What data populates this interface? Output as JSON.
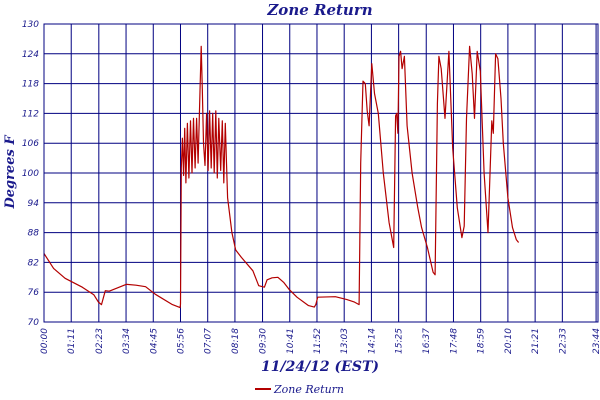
{
  "chart_data": {
    "type": "line",
    "title": "Zone Return",
    "xlabel": "11/24/12 (EST)",
    "ylabel": "Degrees F",
    "ylim": [
      70,
      130
    ],
    "yticks": [
      70,
      76,
      82,
      88,
      94,
      100,
      106,
      112,
      118,
      124,
      130
    ],
    "xlim": [
      0,
      1445
    ],
    "xticks": [
      {
        "m": 0,
        "label": "00:00"
      },
      {
        "m": 71,
        "label": "01:11"
      },
      {
        "m": 143,
        "label": "02:23"
      },
      {
        "m": 214,
        "label": "03:34"
      },
      {
        "m": 285,
        "label": "04:45"
      },
      {
        "m": 356,
        "label": "05:56"
      },
      {
        "m": 427,
        "label": "07:07"
      },
      {
        "m": 498,
        "label": "08:18"
      },
      {
        "m": 570,
        "label": "09:30"
      },
      {
        "m": 641,
        "label": "10:41"
      },
      {
        "m": 712,
        "label": "11:52"
      },
      {
        "m": 783,
        "label": "13:03"
      },
      {
        "m": 854,
        "label": "14:14"
      },
      {
        "m": 925,
        "label": "15:25"
      },
      {
        "m": 997,
        "label": "16:37"
      },
      {
        "m": 1068,
        "label": "17:48"
      },
      {
        "m": 1139,
        "label": "18:59"
      },
      {
        "m": 1210,
        "label": "20:10"
      },
      {
        "m": 1281,
        "label": "21:21"
      },
      {
        "m": 1352,
        "label": "22:33"
      },
      {
        "m": 1440,
        "label": "23:44"
      }
    ],
    "grid": true,
    "legend_position": "bottom-center",
    "series": [
      {
        "name": "Zone Return",
        "color": "#b30000",
        "points": [
          [
            0,
            83.8
          ],
          [
            25,
            80.8
          ],
          [
            55,
            78.8
          ],
          [
            100,
            77
          ],
          [
            130,
            75.5
          ],
          [
            142,
            74
          ],
          [
            150,
            73.5
          ],
          [
            160,
            76.3
          ],
          [
            170,
            76.2
          ],
          [
            215,
            77.6
          ],
          [
            240,
            77.4
          ],
          [
            265,
            77.1
          ],
          [
            290,
            75.6
          ],
          [
            335,
            73.5
          ],
          [
            355,
            72.9
          ],
          [
            356,
            73.6
          ],
          [
            358,
            101
          ],
          [
            361,
            107
          ],
          [
            364,
            99.5
          ],
          [
            367,
            109
          ],
          [
            370,
            98
          ],
          [
            374,
            110
          ],
          [
            378,
            99
          ],
          [
            382,
            110.5
          ],
          [
            386,
            100
          ],
          [
            390,
            111
          ],
          [
            394,
            101
          ],
          [
            398,
            111
          ],
          [
            402,
            102
          ],
          [
            407,
            116.5
          ],
          [
            410,
            125.5
          ],
          [
            413,
            117
          ],
          [
            416,
            106
          ],
          [
            420,
            101.5
          ],
          [
            424,
            112
          ],
          [
            428,
            100.5
          ],
          [
            432,
            112.5
          ],
          [
            436,
            101
          ],
          [
            440,
            112
          ],
          [
            444,
            100
          ],
          [
            448,
            112.5
          ],
          [
            452,
            99
          ],
          [
            456,
            111
          ],
          [
            461,
            100.5
          ],
          [
            465,
            110.5
          ],
          [
            469,
            98
          ],
          [
            473,
            110
          ],
          [
            476,
            102
          ],
          [
            479,
            95
          ],
          [
            490,
            88
          ],
          [
            500,
            84.5
          ],
          [
            515,
            83
          ],
          [
            545,
            80.3
          ],
          [
            560,
            77.3
          ],
          [
            575,
            77
          ],
          [
            582,
            78.5
          ],
          [
            595,
            78.9
          ],
          [
            610,
            79
          ],
          [
            625,
            78
          ],
          [
            640,
            76.5
          ],
          [
            660,
            75
          ],
          [
            690,
            73.3
          ],
          [
            705,
            73
          ],
          [
            709,
            73.5
          ],
          [
            714,
            75
          ],
          [
            760,
            75.1
          ],
          [
            790,
            74.5
          ],
          [
            810,
            74
          ],
          [
            822,
            73.5
          ],
          [
            826,
            102
          ],
          [
            832,
            118.5
          ],
          [
            838,
            118
          ],
          [
            843,
            112.5
          ],
          [
            848,
            109.5
          ],
          [
            855,
            122
          ],
          [
            862,
            116
          ],
          [
            872,
            112
          ],
          [
            885,
            100
          ],
          [
            900,
            90
          ],
          [
            912,
            85
          ],
          [
            917,
            111.5
          ],
          [
            920,
            112
          ],
          [
            923,
            108
          ],
          [
            926,
            123.5
          ],
          [
            930,
            124.5
          ],
          [
            934,
            121
          ],
          [
            940,
            123.5
          ],
          [
            947,
            109.5
          ],
          [
            960,
            100
          ],
          [
            975,
            93
          ],
          [
            985,
            89
          ],
          [
            1000,
            85
          ],
          [
            1015,
            80
          ],
          [
            1020,
            79.5
          ],
          [
            1026,
            114
          ],
          [
            1030,
            123.5
          ],
          [
            1036,
            121
          ],
          [
            1046,
            111
          ],
          [
            1056,
            124.5
          ],
          [
            1066,
            105
          ],
          [
            1078,
            93
          ],
          [
            1090,
            87
          ],
          [
            1096,
            89.3
          ],
          [
            1102,
            111
          ],
          [
            1110,
            125.5
          ],
          [
            1117,
            120
          ],
          [
            1123,
            111
          ],
          [
            1130,
            124.5
          ],
          [
            1138,
            120.5
          ],
          [
            1148,
            100
          ],
          [
            1158,
            88
          ],
          [
            1168,
            110.5
          ],
          [
            1172,
            108
          ],
          [
            1178,
            124
          ],
          [
            1184,
            123
          ],
          [
            1192,
            115
          ],
          [
            1198,
            106
          ],
          [
            1210,
            95
          ],
          [
            1222,
            89
          ],
          [
            1232,
            86.6
          ],
          [
            1238,
            86
          ]
        ]
      }
    ]
  },
  "legend": {
    "label": "Zone Return"
  }
}
